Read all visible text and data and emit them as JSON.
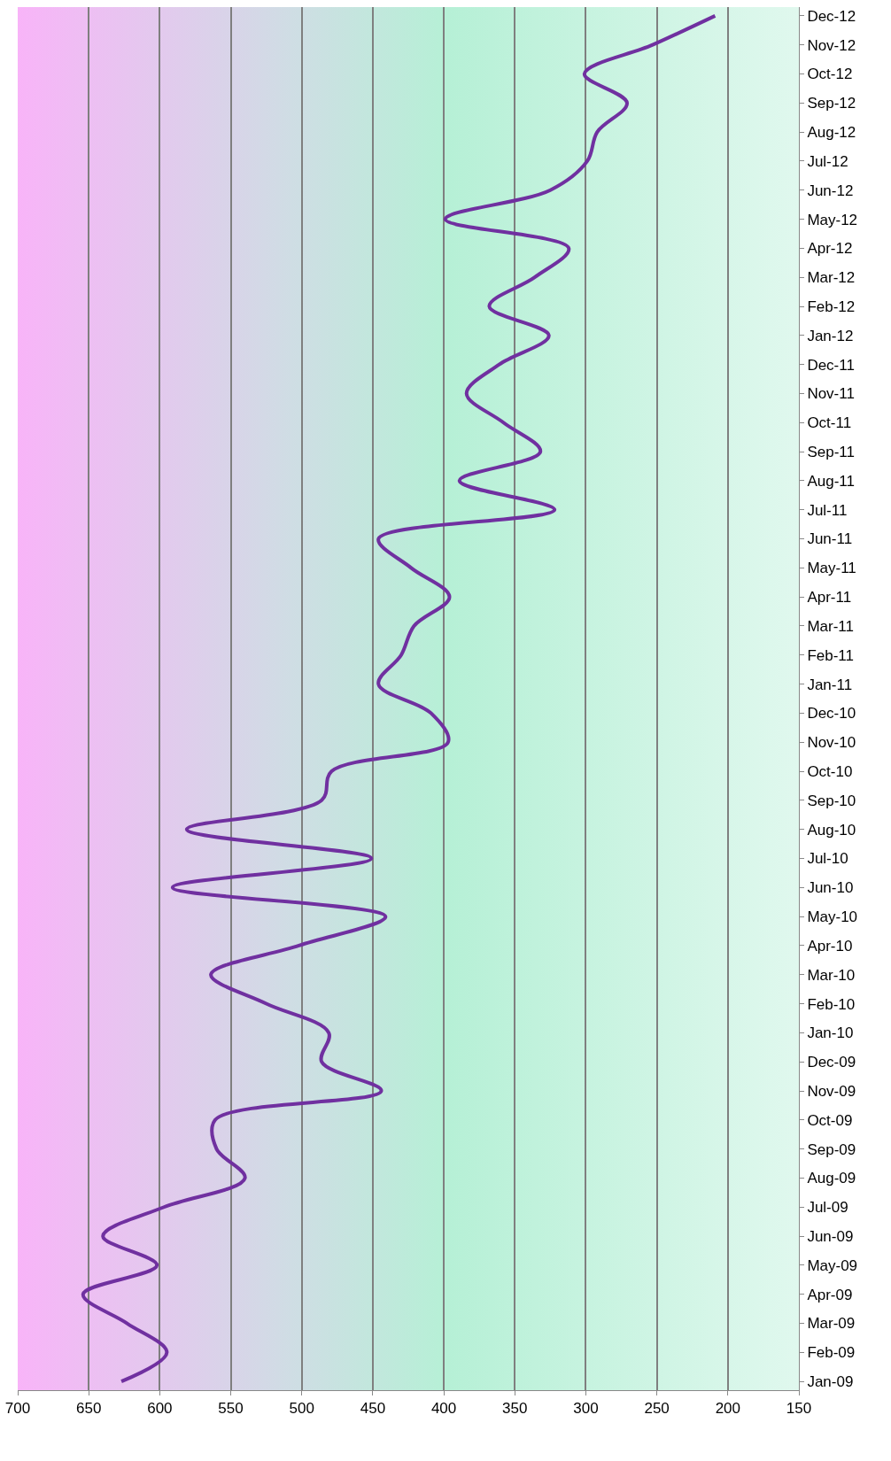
{
  "chart_data": {
    "type": "line",
    "orientation": "horizontal",
    "categories": [
      "Dec-12",
      "Nov-12",
      "Oct-12",
      "Sep-12",
      "Aug-12",
      "Jul-12",
      "Jun-12",
      "May-12",
      "Apr-12",
      "Mar-12",
      "Feb-12",
      "Jan-12",
      "Dec-11",
      "Nov-11",
      "Oct-11",
      "Sep-11",
      "Aug-11",
      "Jul-11",
      "Jun-11",
      "May-11",
      "Apr-11",
      "Mar-11",
      "Feb-11",
      "Jan-11",
      "Dec-10",
      "Nov-10",
      "Oct-10",
      "Sep-10",
      "Aug-10",
      "Jul-10",
      "Jun-10",
      "May-10",
      "Apr-10",
      "Mar-10",
      "Feb-10",
      "Jan-10",
      "Dec-09",
      "Nov-09",
      "Oct-09",
      "Sep-09",
      "Aug-09",
      "Jul-09",
      "Jun-09",
      "May-09",
      "Apr-09",
      "Mar-09",
      "Feb-09",
      "Jan-09"
    ],
    "values": [
      209,
      253,
      301,
      271,
      292,
      299,
      325,
      399,
      312,
      336,
      368,
      326,
      361,
      384,
      358,
      332,
      389,
      322,
      446,
      423,
      396,
      421,
      430,
      446,
      409,
      397,
      479,
      486,
      581,
      451,
      591,
      441,
      502,
      564,
      525,
      481,
      486,
      444,
      561,
      560,
      540,
      597,
      640,
      602,
      654,
      623,
      595,
      627
    ],
    "color": "#7030a0",
    "xlim": [
      700,
      150
    ],
    "xticks": [
      700,
      650,
      600,
      550,
      500,
      450,
      400,
      350,
      300,
      250,
      200,
      150
    ],
    "grid": "x",
    "marker": "none",
    "line_style": "solid"
  }
}
